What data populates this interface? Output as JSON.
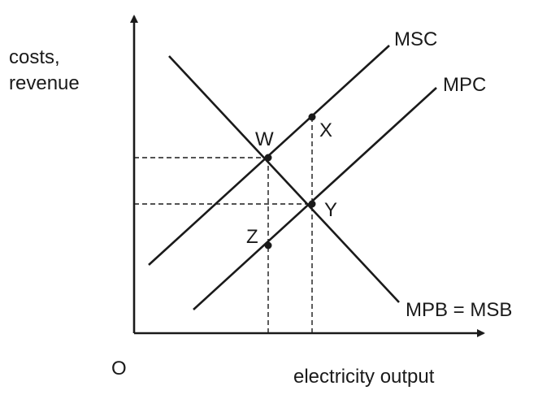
{
  "axes": {
    "y_label_line1": "costs,",
    "y_label_line2": "revenue",
    "x_label": "electricity output",
    "origin_label": "O"
  },
  "curves": {
    "msc": "MSC",
    "mpc": "MPC",
    "mpb_msb": "MPB = MSB"
  },
  "points": {
    "w": "W",
    "x": "X",
    "y": "Y",
    "z": "Z"
  },
  "colors": {
    "ink": "#1a1a1a",
    "background": "#ffffff"
  }
}
